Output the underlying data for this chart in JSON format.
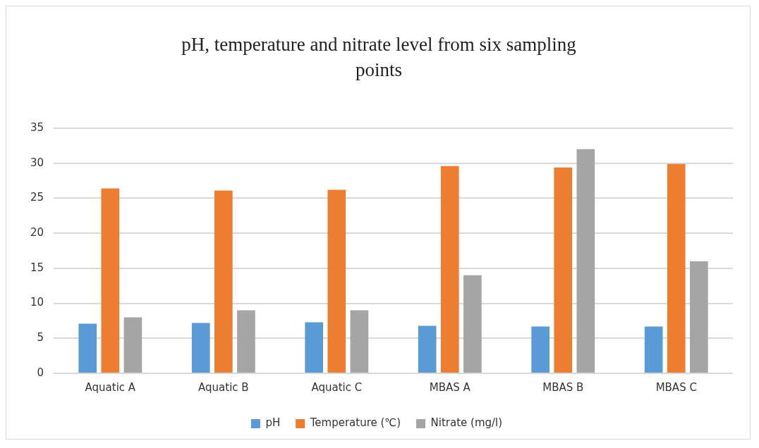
{
  "chart_data": {
    "type": "bar",
    "title": "pH, temperature and nitrate level from six sampling points",
    "categories": [
      "Aquatic A",
      "Aquatic B",
      "Aquatic C",
      "MBAS A",
      "MBAS B",
      "MBAS C"
    ],
    "series": [
      {
        "name": "pH",
        "color": "#5b9bd5",
        "values": [
          7.1,
          7.2,
          7.3,
          6.8,
          6.7,
          6.7
        ]
      },
      {
        "name": "Temperature (℃)",
        "color": "#ed7d31",
        "values": [
          26.4,
          26.1,
          26.2,
          29.6,
          29.4,
          29.9
        ]
      },
      {
        "name": "Nitrate (mg/l)",
        "color": "#a5a5a5",
        "values": [
          8.0,
          9.0,
          9.0,
          14.0,
          32.0,
          16.0
        ]
      }
    ],
    "ylim": [
      0,
      35
    ],
    "yticks": [
      0,
      5,
      10,
      15,
      20,
      25,
      30,
      35
    ],
    "grid": "y",
    "legend": "bottom"
  }
}
